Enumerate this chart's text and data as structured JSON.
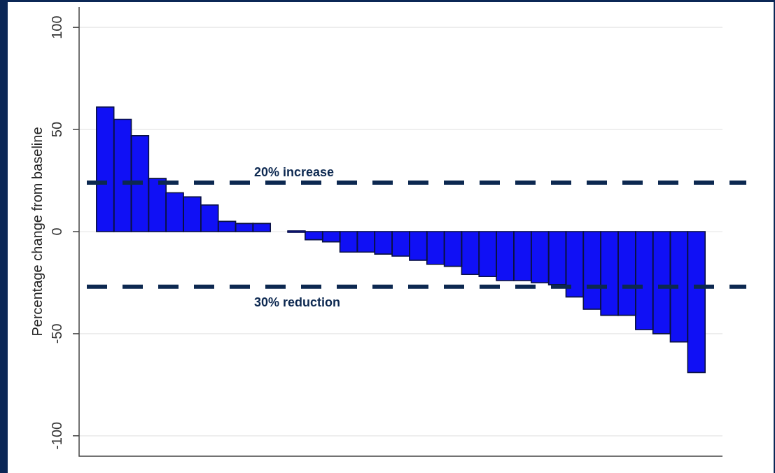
{
  "chart_data": {
    "type": "bar",
    "ylabel": "Percentage change from baseline",
    "categories": [
      null,
      null,
      null,
      null,
      null,
      null,
      null,
      null,
      null,
      null,
      null,
      null,
      null,
      null,
      null,
      null,
      null,
      null,
      null,
      null,
      null,
      null,
      null,
      null,
      null,
      null,
      null,
      null,
      null,
      null,
      null,
      null,
      null,
      null,
      null,
      null,
      null
    ],
    "values": [
      null,
      61,
      55,
      47,
      26,
      19,
      17,
      13,
      5,
      4,
      4,
      null,
      0,
      -4,
      -5,
      -10,
      -10,
      -11,
      -12,
      -14,
      -16,
      -17,
      -21,
      -22,
      -24,
      -24,
      -25,
      -26,
      -32,
      -38,
      -41,
      -41,
      -48,
      -50,
      -54,
      -69,
      null
    ],
    "color": "#1010f5",
    "ylim": [
      -110,
      110
    ],
    "yticks": [
      -100,
      -50,
      0,
      50,
      100
    ],
    "grid": "y",
    "tick_labels": "y",
    "ref_lines": [
      {
        "axis": "y",
        "value": 24,
        "label": "20% increase",
        "color": "#0c2850",
        "line_style": "dashed"
      },
      {
        "axis": "y",
        "value": -27,
        "label": "30% reduction",
        "color": "#0c2850",
        "line_style": "dashed"
      }
    ]
  }
}
